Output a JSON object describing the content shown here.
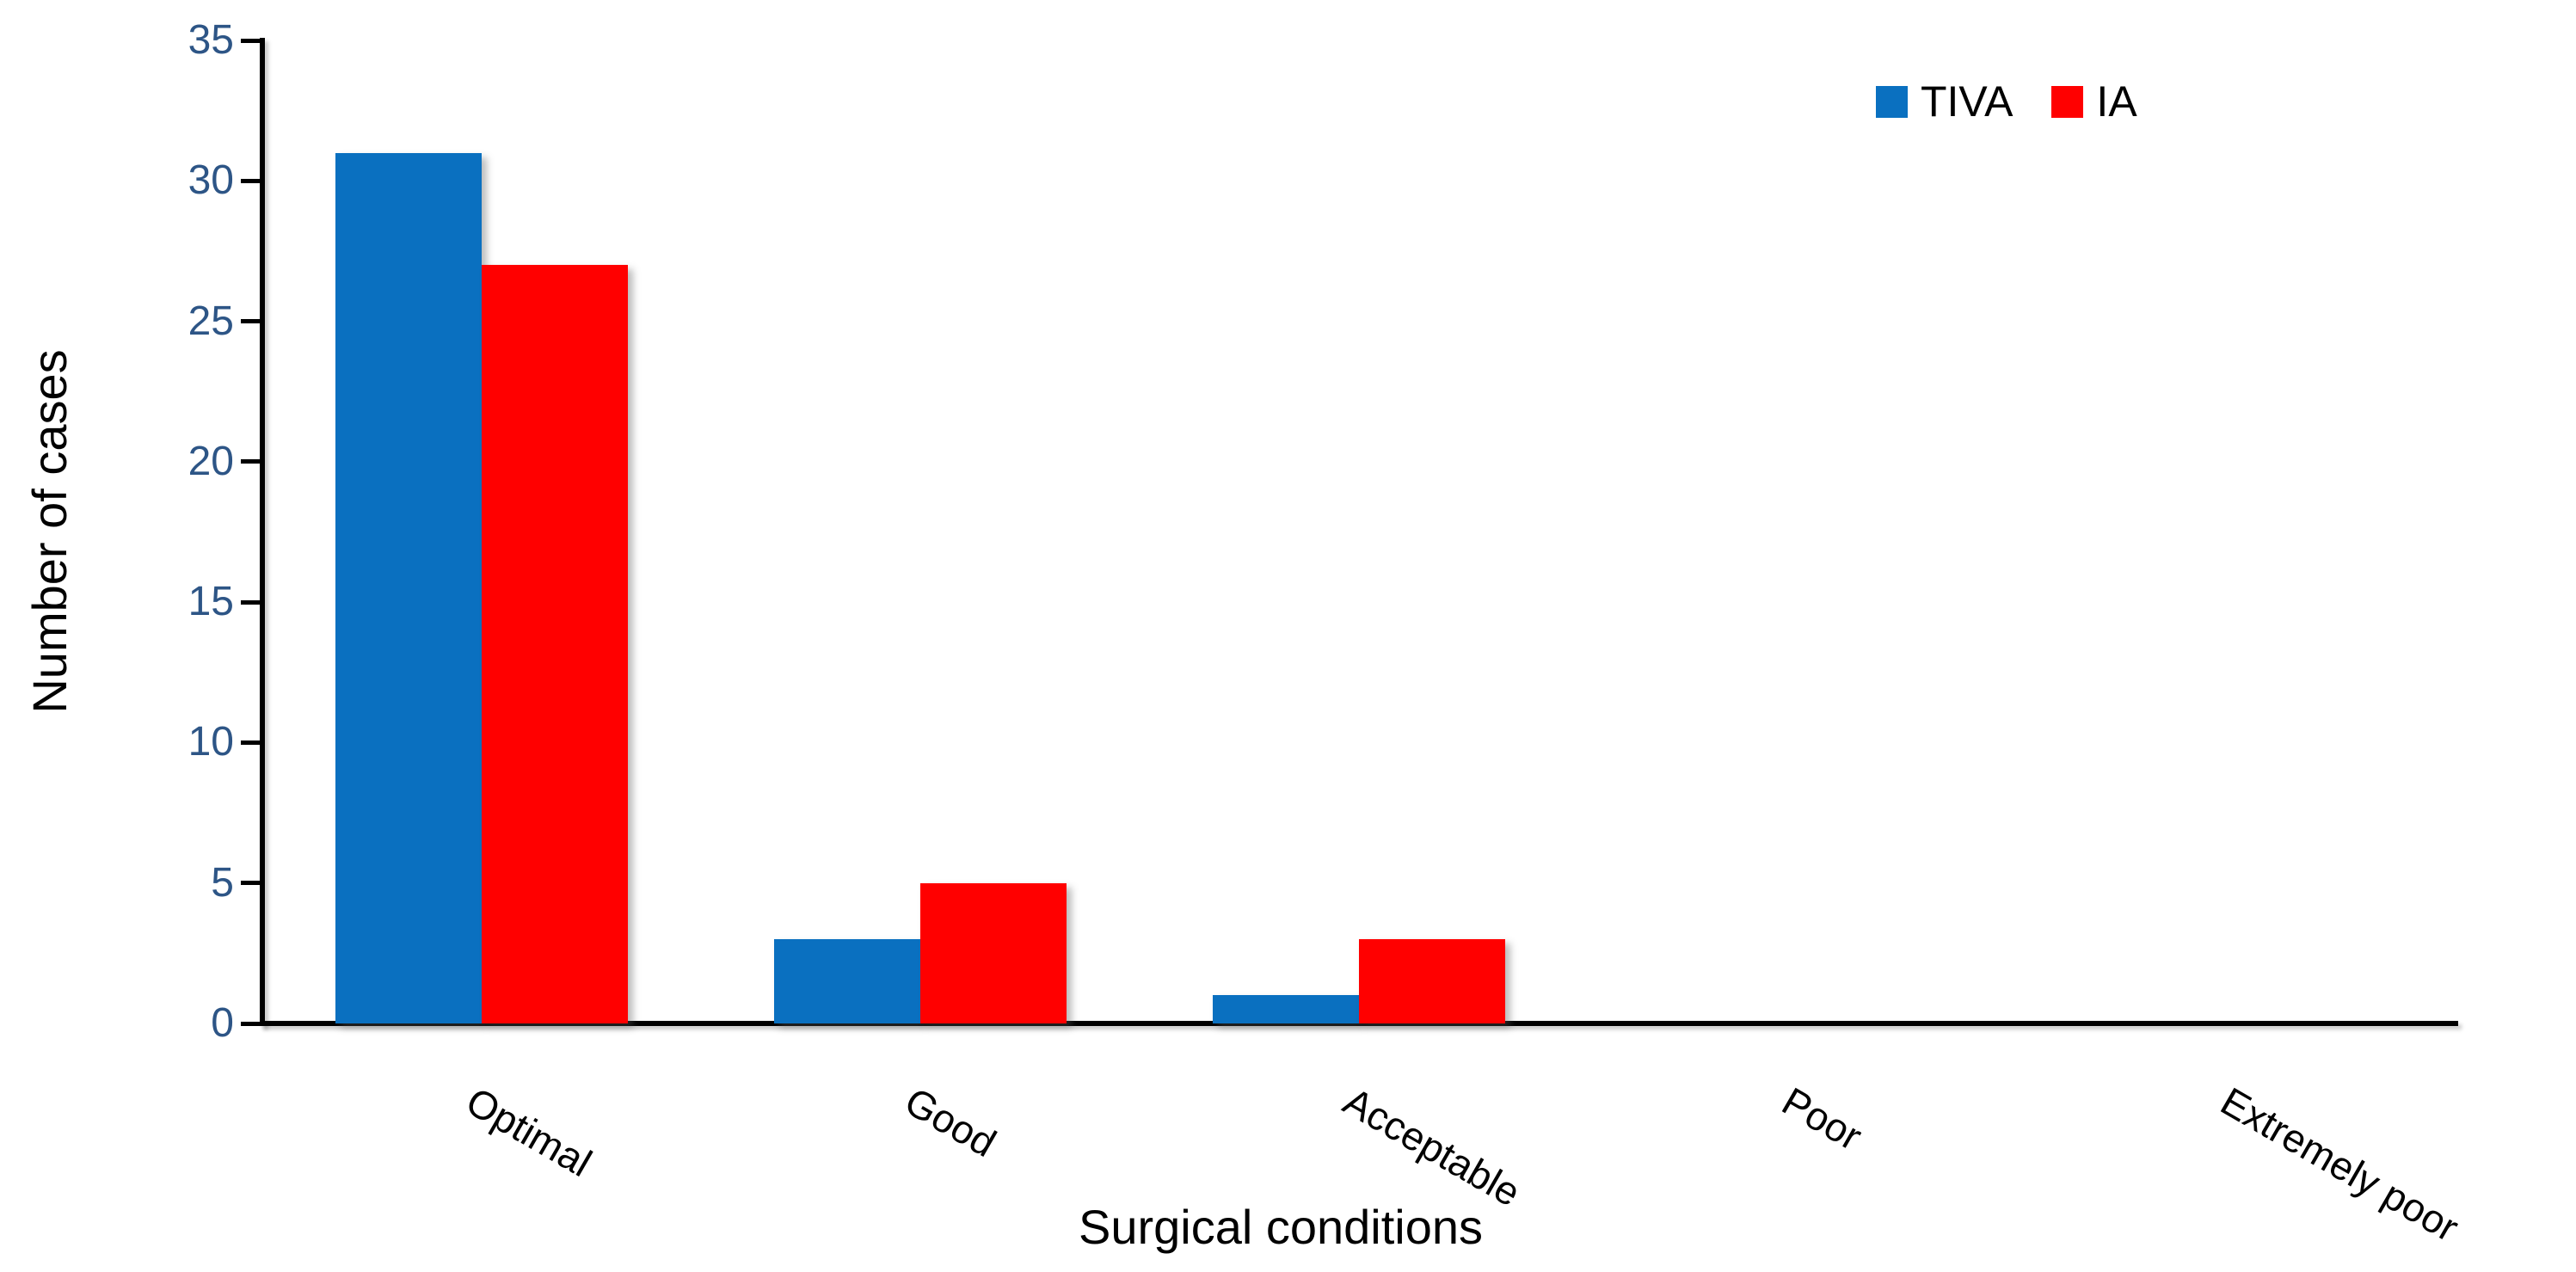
{
  "chart_data": {
    "type": "bar",
    "title": "",
    "categories": [
      "Optimal",
      "Good",
      "Acceptable",
      "Poor",
      "Extremely poor"
    ],
    "series": [
      {
        "name": "TIVA",
        "color": "#0A70C0",
        "values": [
          31,
          3,
          1,
          0,
          0
        ]
      },
      {
        "name": "IA",
        "color": "#FF0000",
        "values": [
          27,
          5,
          3,
          0,
          0
        ]
      }
    ],
    "xlabel": "Surgical conditions",
    "ylabel": "Number of cases",
    "ylim": [
      0,
      35
    ],
    "ytick_step": 5,
    "yticks": [
      0,
      5,
      10,
      15,
      20,
      25,
      30,
      35
    ],
    "grid": false,
    "legend_position": "top-right",
    "category_label_rotation_deg": 30
  },
  "colors": {
    "axis": "#000000",
    "ytick_label": "#2D5586",
    "text": "#000000",
    "background": "#FFFFFF"
  }
}
